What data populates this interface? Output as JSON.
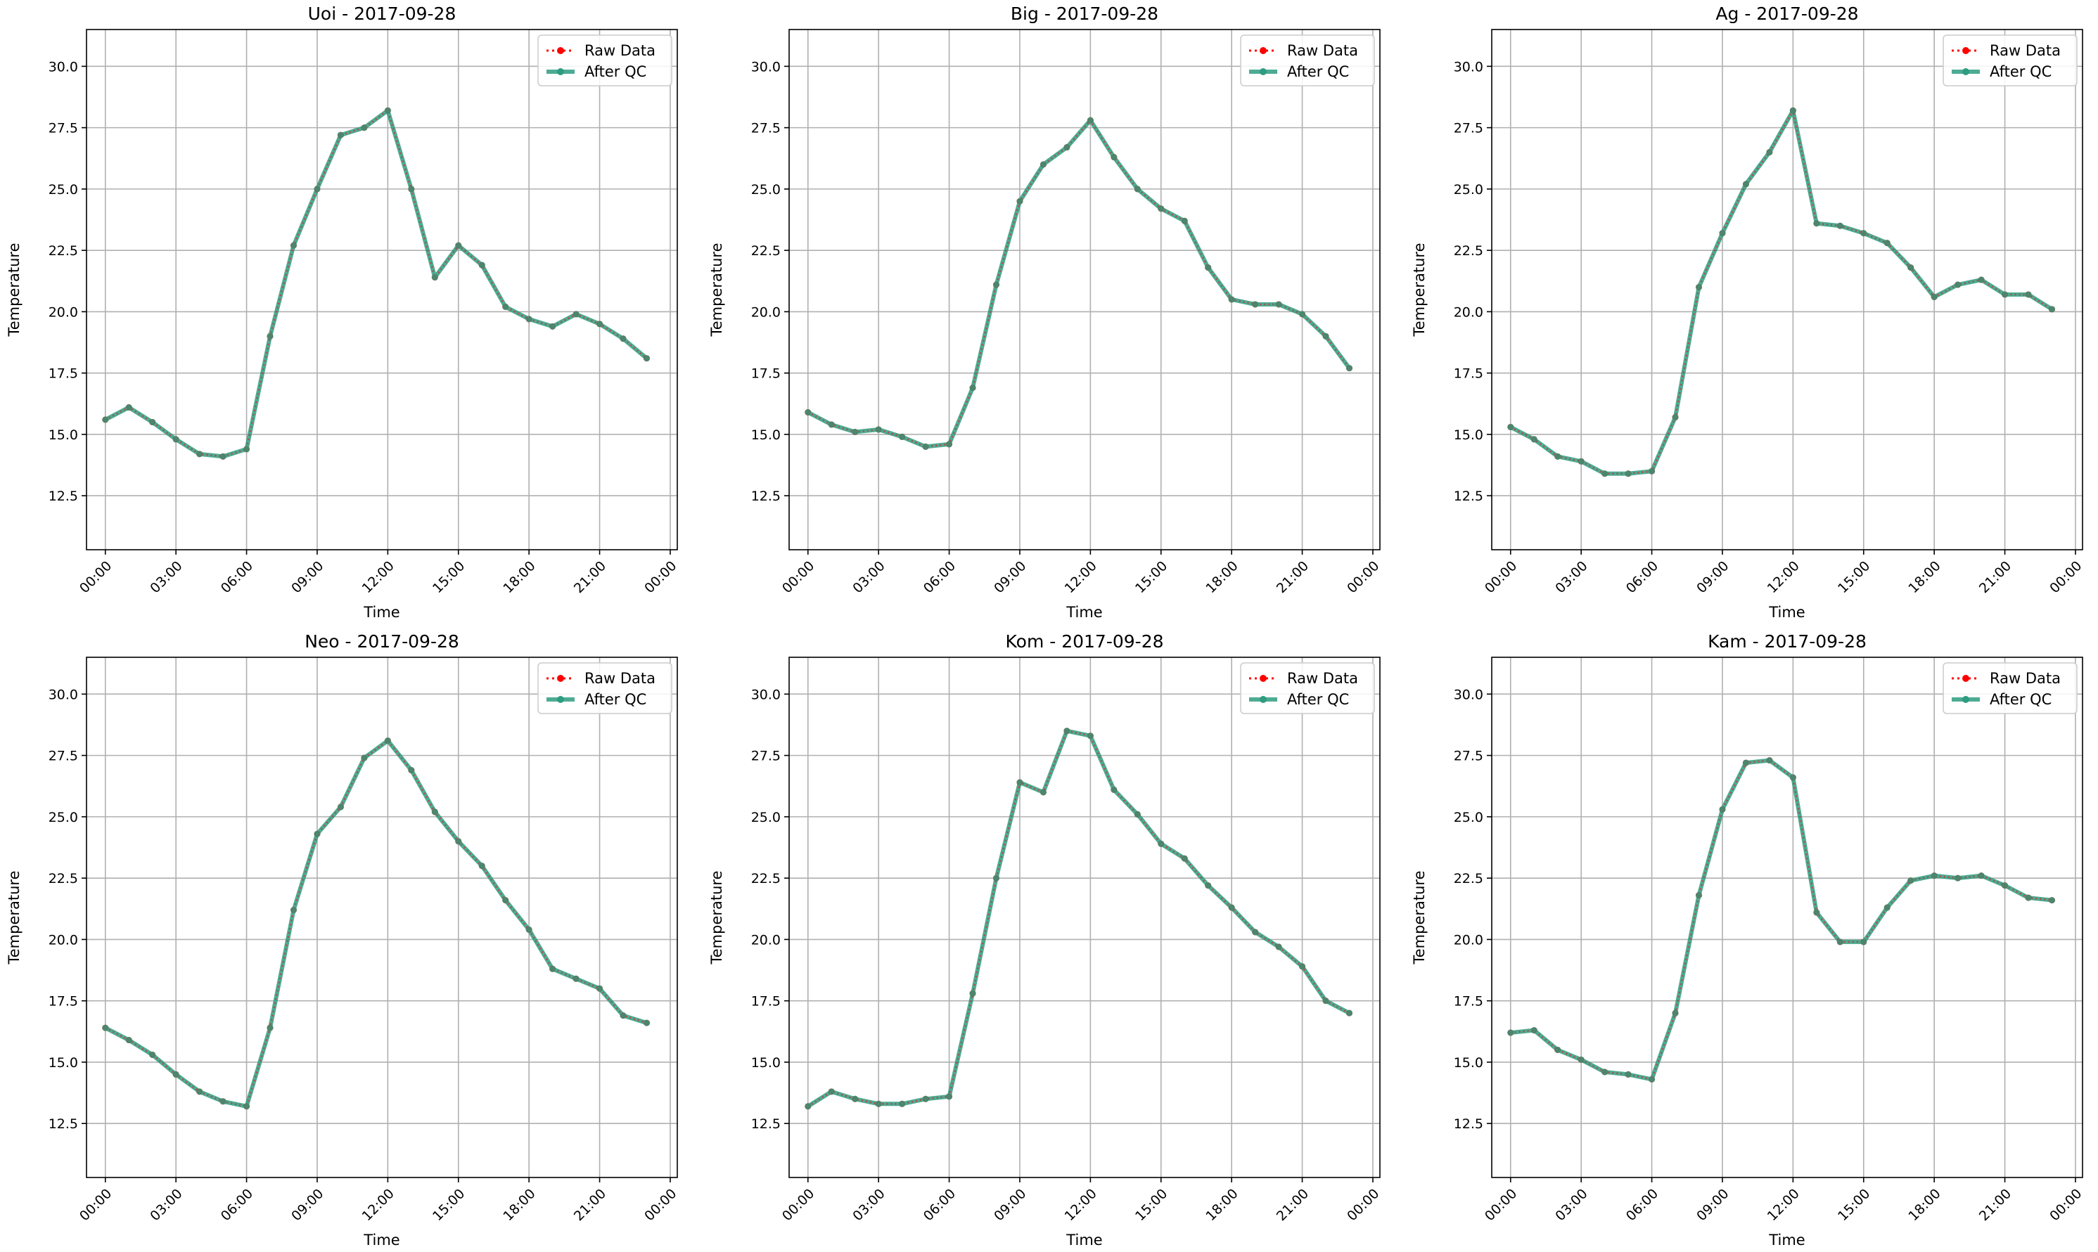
{
  "legend": {
    "raw_label": "Raw Data",
    "qc_label": "After QC"
  },
  "colors": {
    "raw": "#ff0000",
    "qc": "#2e9c80",
    "grid": "#b0b0b0",
    "axes": "#000000",
    "background": "#ffffff"
  },
  "chart_data": [
    {
      "type": "line",
      "title": "Uoi - 2017-09-28",
      "xlabel": "Time",
      "ylabel": "Temperature",
      "x": [
        "00:00",
        "01:00",
        "02:00",
        "03:00",
        "04:00",
        "05:00",
        "06:00",
        "07:00",
        "08:00",
        "09:00",
        "10:00",
        "11:00",
        "12:00",
        "13:00",
        "14:00",
        "15:00",
        "16:00",
        "17:00",
        "18:00",
        "19:00",
        "20:00",
        "21:00",
        "22:00",
        "23:00"
      ],
      "x_ticks": [
        "00:00",
        "03:00",
        "06:00",
        "09:00",
        "12:00",
        "15:00",
        "18:00",
        "21:00",
        "00:00"
      ],
      "y_ticks": [
        "12.5",
        "15.0",
        "17.5",
        "20.0",
        "22.5",
        "25.0",
        "27.5",
        "30.0"
      ],
      "ylim": [
        10.3,
        31.5
      ],
      "grid": true,
      "legend_position": "top-right",
      "series": [
        {
          "name": "Raw Data",
          "values": [
            15.6,
            16.1,
            15.5,
            14.8,
            14.2,
            14.1,
            14.4,
            19.0,
            22.7,
            25.0,
            27.2,
            27.5,
            28.2,
            25.0,
            21.4,
            22.7,
            21.9,
            20.2,
            19.7,
            19.4,
            19.9,
            19.5,
            18.9,
            18.1
          ]
        },
        {
          "name": "After QC",
          "values": [
            15.6,
            16.1,
            15.5,
            14.8,
            14.2,
            14.1,
            14.4,
            19.0,
            22.7,
            25.0,
            27.2,
            27.5,
            28.2,
            25.0,
            21.4,
            22.7,
            21.9,
            20.2,
            19.7,
            19.4,
            19.9,
            19.5,
            18.9,
            18.1
          ]
        }
      ]
    },
    {
      "type": "line",
      "title": "Big - 2017-09-28",
      "xlabel": "Time",
      "ylabel": "Temperature",
      "x": [
        "00:00",
        "01:00",
        "02:00",
        "03:00",
        "04:00",
        "05:00",
        "06:00",
        "07:00",
        "08:00",
        "09:00",
        "10:00",
        "11:00",
        "12:00",
        "13:00",
        "14:00",
        "15:00",
        "16:00",
        "17:00",
        "18:00",
        "19:00",
        "20:00",
        "21:00",
        "22:00",
        "23:00"
      ],
      "x_ticks": [
        "00:00",
        "03:00",
        "06:00",
        "09:00",
        "12:00",
        "15:00",
        "18:00",
        "21:00",
        "00:00"
      ],
      "y_ticks": [
        "12.5",
        "15.0",
        "17.5",
        "20.0",
        "22.5",
        "25.0",
        "27.5",
        "30.0"
      ],
      "ylim": [
        10.3,
        31.5
      ],
      "grid": true,
      "legend_position": "top-right",
      "series": [
        {
          "name": "Raw Data",
          "values": [
            15.9,
            15.4,
            15.1,
            15.2,
            14.9,
            14.5,
            14.6,
            16.9,
            21.1,
            24.5,
            26.0,
            26.7,
            27.8,
            26.3,
            25.0,
            24.2,
            23.7,
            21.8,
            20.5,
            20.3,
            20.3,
            19.9,
            19.0,
            17.7
          ]
        },
        {
          "name": "After QC",
          "values": [
            15.9,
            15.4,
            15.1,
            15.2,
            14.9,
            14.5,
            14.6,
            16.9,
            21.1,
            24.5,
            26.0,
            26.7,
            27.8,
            26.3,
            25.0,
            24.2,
            23.7,
            21.8,
            20.5,
            20.3,
            20.3,
            19.9,
            19.0,
            17.7
          ]
        }
      ]
    },
    {
      "type": "line",
      "title": "Ag - 2017-09-28",
      "xlabel": "Time",
      "ylabel": "Temperature",
      "x": [
        "00:00",
        "01:00",
        "02:00",
        "03:00",
        "04:00",
        "05:00",
        "06:00",
        "07:00",
        "08:00",
        "09:00",
        "10:00",
        "11:00",
        "12:00",
        "13:00",
        "14:00",
        "15:00",
        "16:00",
        "17:00",
        "18:00",
        "19:00",
        "20:00",
        "21:00",
        "22:00",
        "23:00"
      ],
      "x_ticks": [
        "00:00",
        "03:00",
        "06:00",
        "09:00",
        "12:00",
        "15:00",
        "18:00",
        "21:00",
        "00:00"
      ],
      "y_ticks": [
        "12.5",
        "15.0",
        "17.5",
        "20.0",
        "22.5",
        "25.0",
        "27.5",
        "30.0"
      ],
      "ylim": [
        10.3,
        31.5
      ],
      "grid": true,
      "legend_position": "top-right",
      "series": [
        {
          "name": "Raw Data",
          "values": [
            15.3,
            14.8,
            14.1,
            13.9,
            13.4,
            13.4,
            13.5,
            15.7,
            21.0,
            23.2,
            25.2,
            26.5,
            28.2,
            23.6,
            23.5,
            23.2,
            22.8,
            21.8,
            20.6,
            21.1,
            21.3,
            20.7,
            20.7,
            20.1
          ]
        },
        {
          "name": "After QC",
          "values": [
            15.3,
            14.8,
            14.1,
            13.9,
            13.4,
            13.4,
            13.5,
            15.7,
            21.0,
            23.2,
            25.2,
            26.5,
            28.2,
            23.6,
            23.5,
            23.2,
            22.8,
            21.8,
            20.6,
            21.1,
            21.3,
            20.7,
            20.7,
            20.1
          ]
        }
      ]
    },
    {
      "type": "line",
      "title": "Neo - 2017-09-28",
      "xlabel": "Time",
      "ylabel": "Temperature",
      "x": [
        "00:00",
        "01:00",
        "02:00",
        "03:00",
        "04:00",
        "05:00",
        "06:00",
        "07:00",
        "08:00",
        "09:00",
        "10:00",
        "11:00",
        "12:00",
        "13:00",
        "14:00",
        "15:00",
        "16:00",
        "17:00",
        "18:00",
        "19:00",
        "20:00",
        "21:00",
        "22:00",
        "23:00"
      ],
      "x_ticks": [
        "00:00",
        "03:00",
        "06:00",
        "09:00",
        "12:00",
        "15:00",
        "18:00",
        "21:00",
        "00:00"
      ],
      "y_ticks": [
        "12.5",
        "15.0",
        "17.5",
        "20.0",
        "22.5",
        "25.0",
        "27.5",
        "30.0"
      ],
      "ylim": [
        10.3,
        31.5
      ],
      "grid": true,
      "legend_position": "top-right",
      "series": [
        {
          "name": "Raw Data",
          "values": [
            16.4,
            15.9,
            15.3,
            14.5,
            13.8,
            13.4,
            13.2,
            16.4,
            21.2,
            24.3,
            25.4,
            27.4,
            28.1,
            26.9,
            25.2,
            24.0,
            23.0,
            21.6,
            20.4,
            18.8,
            18.4,
            18.0,
            16.9,
            16.6
          ]
        },
        {
          "name": "After QC",
          "values": [
            16.4,
            15.9,
            15.3,
            14.5,
            13.8,
            13.4,
            13.2,
            16.4,
            21.2,
            24.3,
            25.4,
            27.4,
            28.1,
            26.9,
            25.2,
            24.0,
            23.0,
            21.6,
            20.4,
            18.8,
            18.4,
            18.0,
            16.9,
            16.6
          ]
        }
      ]
    },
    {
      "type": "line",
      "title": "Kom - 2017-09-28",
      "xlabel": "Time",
      "ylabel": "Temperature",
      "x": [
        "00:00",
        "01:00",
        "02:00",
        "03:00",
        "04:00",
        "05:00",
        "06:00",
        "07:00",
        "08:00",
        "09:00",
        "10:00",
        "11:00",
        "12:00",
        "13:00",
        "14:00",
        "15:00",
        "16:00",
        "17:00",
        "18:00",
        "19:00",
        "20:00",
        "21:00",
        "22:00",
        "23:00"
      ],
      "x_ticks": [
        "00:00",
        "03:00",
        "06:00",
        "09:00",
        "12:00",
        "15:00",
        "18:00",
        "21:00",
        "00:00"
      ],
      "y_ticks": [
        "12.5",
        "15.0",
        "17.5",
        "20.0",
        "22.5",
        "25.0",
        "27.5",
        "30.0"
      ],
      "ylim": [
        10.3,
        31.5
      ],
      "grid": true,
      "legend_position": "top-right",
      "series": [
        {
          "name": "Raw Data",
          "values": [
            13.2,
            13.8,
            13.5,
            13.3,
            13.3,
            13.5,
            13.6,
            17.8,
            22.5,
            26.4,
            26.0,
            28.5,
            28.3,
            26.1,
            25.1,
            23.9,
            23.3,
            22.2,
            21.3,
            20.3,
            19.7,
            18.9,
            17.5,
            17.0
          ]
        },
        {
          "name": "After QC",
          "values": [
            13.2,
            13.8,
            13.5,
            13.3,
            13.3,
            13.5,
            13.6,
            17.8,
            22.5,
            26.4,
            26.0,
            28.5,
            28.3,
            26.1,
            25.1,
            23.9,
            23.3,
            22.2,
            21.3,
            20.3,
            19.7,
            18.9,
            17.5,
            17.0
          ]
        }
      ]
    },
    {
      "type": "line",
      "title": "Kam - 2017-09-28",
      "xlabel": "Time",
      "ylabel": "Temperature",
      "x": [
        "00:00",
        "01:00",
        "02:00",
        "03:00",
        "04:00",
        "05:00",
        "06:00",
        "07:00",
        "08:00",
        "09:00",
        "10:00",
        "11:00",
        "12:00",
        "13:00",
        "14:00",
        "15:00",
        "16:00",
        "17:00",
        "18:00",
        "19:00",
        "20:00",
        "21:00",
        "22:00",
        "23:00"
      ],
      "x_ticks": [
        "00:00",
        "03:00",
        "06:00",
        "09:00",
        "12:00",
        "15:00",
        "18:00",
        "21:00",
        "00:00"
      ],
      "y_ticks": [
        "12.5",
        "15.0",
        "17.5",
        "20.0",
        "22.5",
        "25.0",
        "27.5",
        "30.0"
      ],
      "ylim": [
        10.3,
        31.5
      ],
      "grid": true,
      "legend_position": "top-right",
      "series": [
        {
          "name": "Raw Data",
          "values": [
            16.2,
            16.3,
            15.5,
            15.1,
            14.6,
            14.5,
            14.3,
            17.0,
            21.8,
            25.3,
            27.2,
            27.3,
            26.6,
            21.1,
            19.9,
            19.9,
            21.3,
            22.4,
            22.6,
            22.5,
            22.6,
            22.2,
            21.7,
            21.6
          ]
        },
        {
          "name": "After QC",
          "values": [
            16.2,
            16.3,
            15.5,
            15.1,
            14.6,
            14.5,
            14.3,
            17.0,
            21.8,
            25.3,
            27.2,
            27.3,
            26.6,
            21.1,
            19.9,
            19.9,
            21.3,
            22.4,
            22.6,
            22.5,
            22.6,
            22.2,
            21.7,
            21.6
          ]
        }
      ]
    }
  ]
}
